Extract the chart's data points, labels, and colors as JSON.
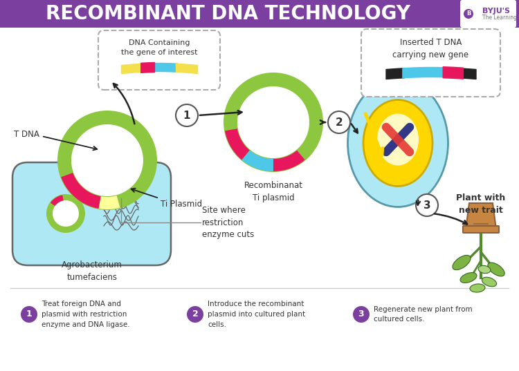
{
  "title": "RECOMBINANT DNA TECHNOLOGY",
  "title_bg": "#7B3FA0",
  "title_color": "#FFFFFF",
  "bg_color": "#FFFFFF",
  "colors": {
    "lime_green": "#8DC63F",
    "light_yellow_glow": "#FFFFF0",
    "yellow_glow": "#FFFF99",
    "pink_red": "#E8175D",
    "cyan_blue": "#4DC8E8",
    "dark_text": "#444444",
    "purple": "#7B3FA0",
    "light_blue_cell": "#ADE8F4",
    "yellow_nucleus": "#FFD700",
    "chromosome_red": "#E53935",
    "chromosome_blue": "#1A237E",
    "dashed_box": "#AAAAAA",
    "separator_line": "#CCCCCC",
    "tan_brown": "#C68642",
    "dark_brown": "#8B5E3C",
    "soil_brown": "#6D4C41",
    "leaf_green1": "#7CB342",
    "leaf_green2": "#558B2F",
    "dark_green": "#33691E",
    "yellow_arrow": "#FFD700",
    "black": "#222222",
    "gray_dna": "#555555"
  },
  "step_labels": [
    "Treat foreign DNA and\nplasmid with restriction\nenzyme and DNA ligase.",
    "Introduce the recombinant\nplasmid into cultured plant\ncells.",
    "Regenerate new plant from\ncultured cells."
  ],
  "annotations": {
    "dna_box": "DNA Containing\nthe gene of interest",
    "inserted_tdna": "Inserted T DNA\ncarrying new gene",
    "recombinant": "Recombinanat\nTi plasmid",
    "tdna": "T DNA",
    "ti_plasmid": "Ti Plasmid",
    "site_restriction": "Site where\nrestriction\nenzyme cuts",
    "agrobacterium": "Agrobacterium\ntumefaciens",
    "plant": "Plant with\nnew trait"
  }
}
